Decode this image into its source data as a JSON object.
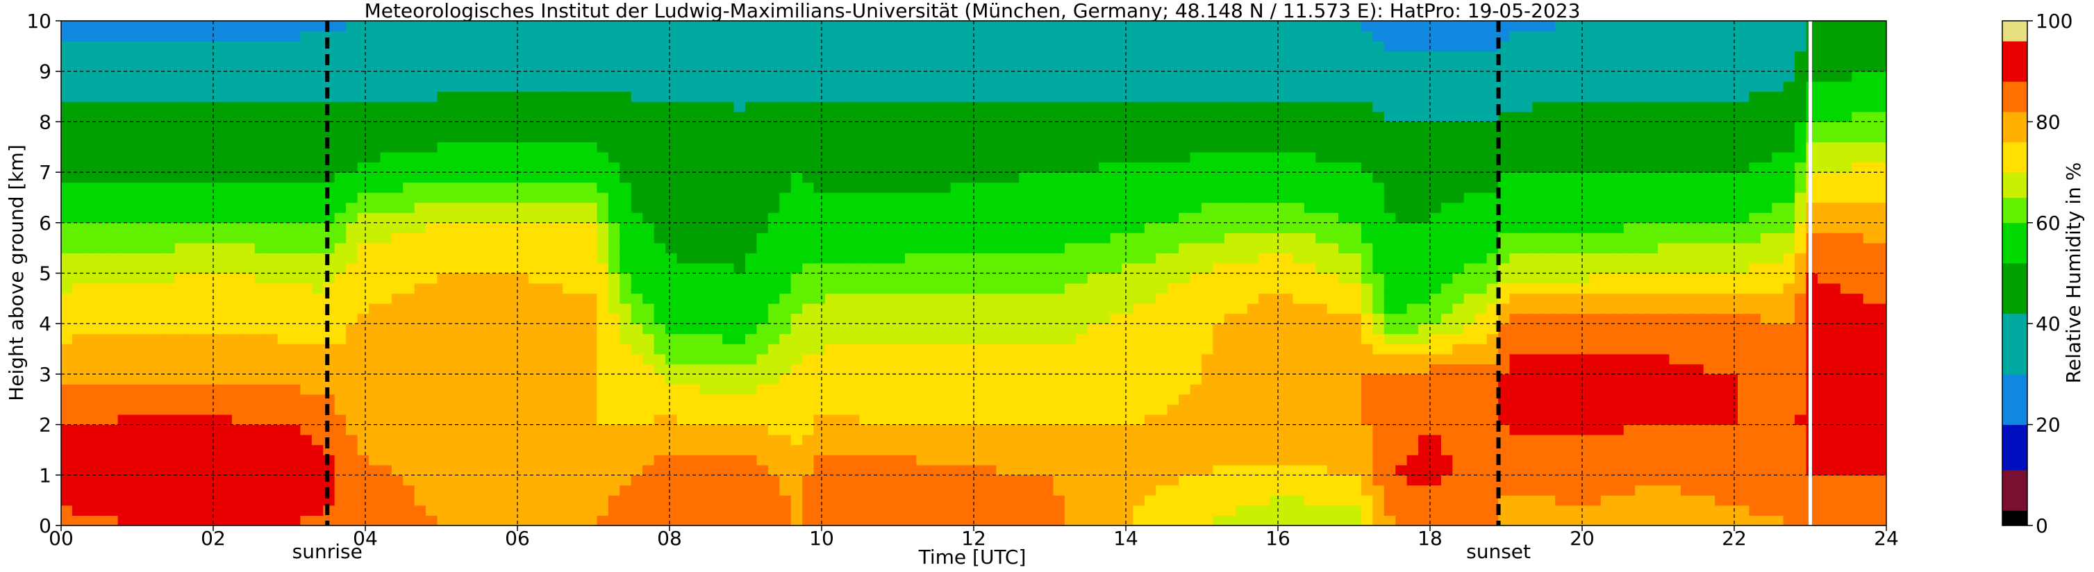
{
  "chart_data": {
    "type": "heatmap",
    "title": "Meteorologisches Institut der Ludwig-Maximilians-Universität (München, Germany; 48.148 N / 11.573 E):    HatPro: 19-05-2023",
    "xlabel": "Time [UTC]",
    "ylabel": "Height above ground [km]",
    "xlim": [
      0,
      24
    ],
    "ylim": [
      0,
      10
    ],
    "x_ticks": [
      "00",
      "02",
      "04",
      "06",
      "08",
      "10",
      "12",
      "14",
      "16",
      "18",
      "20",
      "22",
      "24"
    ],
    "y_ticks": [
      "0",
      "1",
      "2",
      "3",
      "4",
      "5",
      "6",
      "7",
      "8",
      "9",
      "10"
    ],
    "grid": true,
    "annotations": [
      {
        "label": "sunrise",
        "time_utc": 3.5
      },
      {
        "label": "sunset",
        "time_utc": 18.9
      }
    ],
    "data_gap_time_utc": 23.0,
    "colorbar": {
      "label": "Relative Humidity in %",
      "range": [
        0,
        100
      ],
      "ticks": [
        "0",
        "20",
        "40",
        "60",
        "80",
        "100"
      ],
      "colors": [
        {
          "from": 0,
          "to": 3,
          "color": "#000000"
        },
        {
          "from": 3,
          "to": 11,
          "color": "#7a1030"
        },
        {
          "from": 11,
          "to": 20,
          "color": "#0010c0"
        },
        {
          "from": 20,
          "to": 30,
          "color": "#1088e0"
        },
        {
          "from": 30,
          "to": 42,
          "color": "#00aaa0"
        },
        {
          "from": 42,
          "to": 52,
          "color": "#00a000"
        },
        {
          "from": 52,
          "to": 60,
          "color": "#00d800"
        },
        {
          "from": 60,
          "to": 65,
          "color": "#60f000"
        },
        {
          "from": 65,
          "to": 70,
          "color": "#c8f000"
        },
        {
          "from": 70,
          "to": 76,
          "color": "#ffe000"
        },
        {
          "from": 76,
          "to": 82,
          "color": "#ffb000"
        },
        {
          "from": 82,
          "to": 88,
          "color": "#ff7000"
        },
        {
          "from": 88,
          "to": 96,
          "color": "#e80000"
        },
        {
          "from": 96,
          "to": 100,
          "color": "#e8e080"
        }
      ]
    },
    "humidity_profiles": [
      {
        "time": 0.0,
        "rh": [
          87,
          90,
          88,
          80,
          74,
          68,
          60,
          50,
          45,
          38,
          25
        ]
      },
      {
        "time": 1.0,
        "rh": [
          88,
          91,
          89,
          81,
          75,
          69,
          60,
          50,
          45,
          38,
          25
        ]
      },
      {
        "time": 2.0,
        "rh": [
          88,
          91,
          89,
          81,
          75,
          70,
          61,
          51,
          45,
          38,
          25
        ]
      },
      {
        "time": 3.0,
        "rh": [
          88,
          91,
          88,
          80,
          74,
          69,
          60,
          50,
          45,
          38,
          26
        ]
      },
      {
        "time": 3.5,
        "rh": [
          87,
          90,
          86,
          79,
          74,
          68,
          60,
          50,
          45,
          38,
          28
        ]
      },
      {
        "time": 4.0,
        "rh": [
          84,
          84,
          78,
          76,
          77,
          74,
          67,
          54,
          45,
          38,
          30
        ]
      },
      {
        "time": 5.0,
        "rh": [
          82,
          80,
          76,
          76,
          78,
          76,
          70,
          58,
          46,
          38,
          30
        ]
      },
      {
        "time": 6.0,
        "rh": [
          82,
          80,
          77,
          77,
          78,
          76,
          70,
          58,
          47,
          38,
          30
        ]
      },
      {
        "time": 7.0,
        "rh": [
          82,
          80,
          76,
          76,
          77,
          75,
          70,
          58,
          47,
          38,
          30
        ]
      },
      {
        "time": 7.5,
        "rh": [
          84,
          82,
          76,
          74,
          66,
          57,
          53,
          50,
          46,
          38,
          30
        ]
      },
      {
        "time": 8.0,
        "rh": [
          88,
          86,
          77,
          68,
          58,
          53,
          50,
          49,
          45,
          37,
          30
        ]
      },
      {
        "time": 9.0,
        "rh": [
          88,
          87,
          76,
          66,
          57,
          52,
          50,
          48,
          44,
          37,
          30
        ]
      },
      {
        "time": 9.7,
        "rh": [
          82,
          79,
          74,
          72,
          66,
          60,
          55,
          52,
          46,
          37,
          30
        ]
      },
      {
        "time": 10.0,
        "rh": [
          88,
          86,
          77,
          72,
          68,
          62,
          54,
          50,
          46,
          37,
          30
        ]
      },
      {
        "time": 11.0,
        "rh": [
          87,
          85,
          76,
          72,
          68,
          62,
          55,
          50,
          46,
          37,
          30
        ]
      },
      {
        "time": 12.0,
        "rh": [
          85,
          83,
          76,
          72,
          68,
          63,
          55,
          51,
          46,
          37,
          30
        ]
      },
      {
        "time": 13.0,
        "rh": [
          84,
          82,
          76,
          72,
          68,
          63,
          56,
          52,
          46,
          37,
          30
        ]
      },
      {
        "time": 14.0,
        "rh": [
          76,
          78,
          76,
          73,
          71,
          66,
          58,
          53,
          46,
          37,
          30
        ]
      },
      {
        "time": 15.0,
        "rh": [
          70,
          76,
          77,
          76,
          75,
          70,
          62,
          55,
          46,
          37,
          30
        ]
      },
      {
        "time": 16.0,
        "rh": [
          64,
          75,
          79,
          80,
          80,
          74,
          64,
          55,
          46,
          37,
          30
        ]
      },
      {
        "time": 17.0,
        "rh": [
          66,
          76,
          80,
          82,
          78,
          68,
          60,
          54,
          46,
          37,
          30
        ]
      },
      {
        "time": 17.5,
        "rh": [
          82,
          88,
          86,
          84,
          60,
          55,
          52,
          50,
          42,
          34,
          24
        ]
      },
      {
        "time": 18.0,
        "rh": [
          84,
          89,
          88,
          84,
          64,
          56,
          52,
          50,
          42,
          34,
          24
        ]
      },
      {
        "time": 18.9,
        "rh": [
          82,
          86,
          86,
          85,
          74,
          64,
          56,
          50,
          42,
          34,
          24
        ]
      },
      {
        "time": 19.0,
        "rh": [
          78,
          84,
          89,
          89,
          86,
          68,
          58,
          52,
          44,
          36,
          28
        ]
      },
      {
        "time": 20.0,
        "rh": [
          80,
          85,
          89,
          89,
          86,
          68,
          58,
          52,
          45,
          37,
          30
        ]
      },
      {
        "time": 21.0,
        "rh": [
          78,
          83,
          88,
          89,
          86,
          70,
          60,
          52,
          45,
          37,
          30
        ]
      },
      {
        "time": 22.0,
        "rh": [
          80,
          85,
          88,
          88,
          84,
          70,
          60,
          52,
          45,
          38,
          30
        ]
      },
      {
        "time": 22.8,
        "rh": [
          82,
          86,
          87,
          86,
          82,
          74,
          64,
          56,
          48,
          40,
          34
        ]
      },
      {
        "time": 23.0,
        "rh": [
          82,
          88,
          90,
          90,
          90,
          88,
          80,
          70,
          60,
          50,
          48
        ]
      },
      {
        "time": 24.0,
        "rh": [
          82,
          88,
          90,
          90,
          89,
          86,
          80,
          72,
          62,
          52,
          50
        ]
      }
    ]
  }
}
